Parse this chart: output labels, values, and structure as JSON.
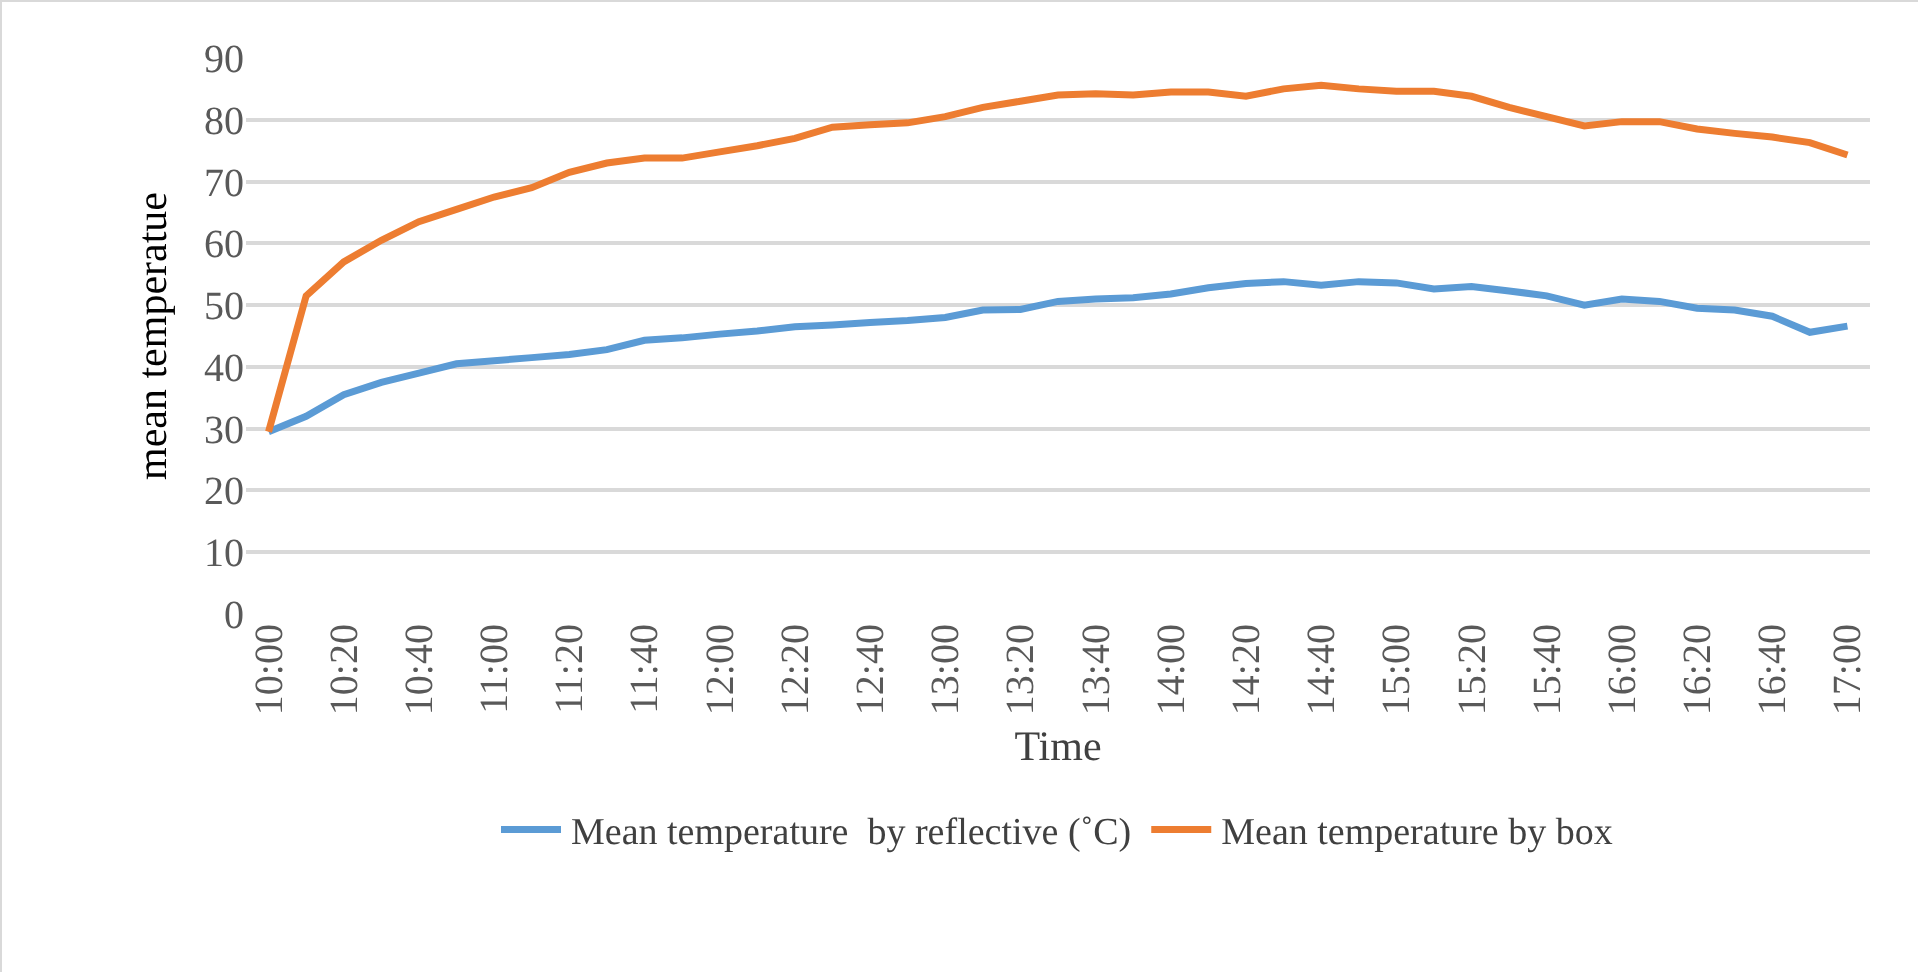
{
  "chart_data": {
    "type": "line",
    "xlabel": "Time",
    "ylabel": "mean temperatue",
    "categories": [
      "10:00",
      null,
      "10:20",
      null,
      "10:40",
      null,
      "11:00",
      null,
      "11:20",
      null,
      "11:40",
      null,
      "12:00",
      null,
      "12:20",
      null,
      "12:40",
      null,
      "13:00",
      null,
      "13:20",
      null,
      "13:40",
      null,
      "14:00",
      null,
      "14:20",
      null,
      "14:40",
      null,
      "15:00",
      null,
      "15:20",
      null,
      "15:40",
      null,
      "16:00",
      null,
      "16:20",
      null,
      "16:40",
      null,
      "17:00"
    ],
    "series": [
      {
        "name": "Mean temperature  by reflective (˚C)",
        "color": "#5b9bd5",
        "values": [
          29.5,
          32,
          35.5,
          37.5,
          39,
          40.5,
          41,
          41.5,
          42,
          42.8,
          44.3,
          44.7,
          45.3,
          45.8,
          46.5,
          46.8,
          47.2,
          47.5,
          48,
          49.2,
          49.3,
          50.6,
          51,
          51.2,
          51.8,
          52.8,
          53.5,
          53.8,
          53.2,
          53.8,
          53.6,
          52.6,
          53,
          52.3,
          51.5,
          50,
          51,
          50.6,
          49.5,
          49.2,
          48.2,
          45.6,
          46.6
        ]
      },
      {
        "name": "Mean temperature by box",
        "color": "#ed7d31",
        "values": [
          29.5,
          51.5,
          57,
          60.5,
          63.5,
          65.5,
          67.5,
          69,
          71.5,
          73,
          73.8,
          73.8,
          74.8,
          75.8,
          77,
          78.8,
          79.2,
          79.5,
          80.5,
          82,
          83,
          84,
          84.2,
          84,
          84.5,
          84.5,
          83.8,
          85,
          85.6,
          85,
          84.6,
          84.6,
          83.8,
          82,
          80.5,
          79,
          79.7,
          79.7,
          78.5,
          77.8,
          77.2,
          76.3,
          74.3
        ]
      }
    ],
    "ylim": [
      0,
      90
    ],
    "yticks": [
      0,
      10,
      20,
      30,
      40,
      50,
      60,
      70,
      80,
      90
    ],
    "grid": "y",
    "legend": "bottom",
    "marker": "none",
    "line_style": "solid"
  }
}
